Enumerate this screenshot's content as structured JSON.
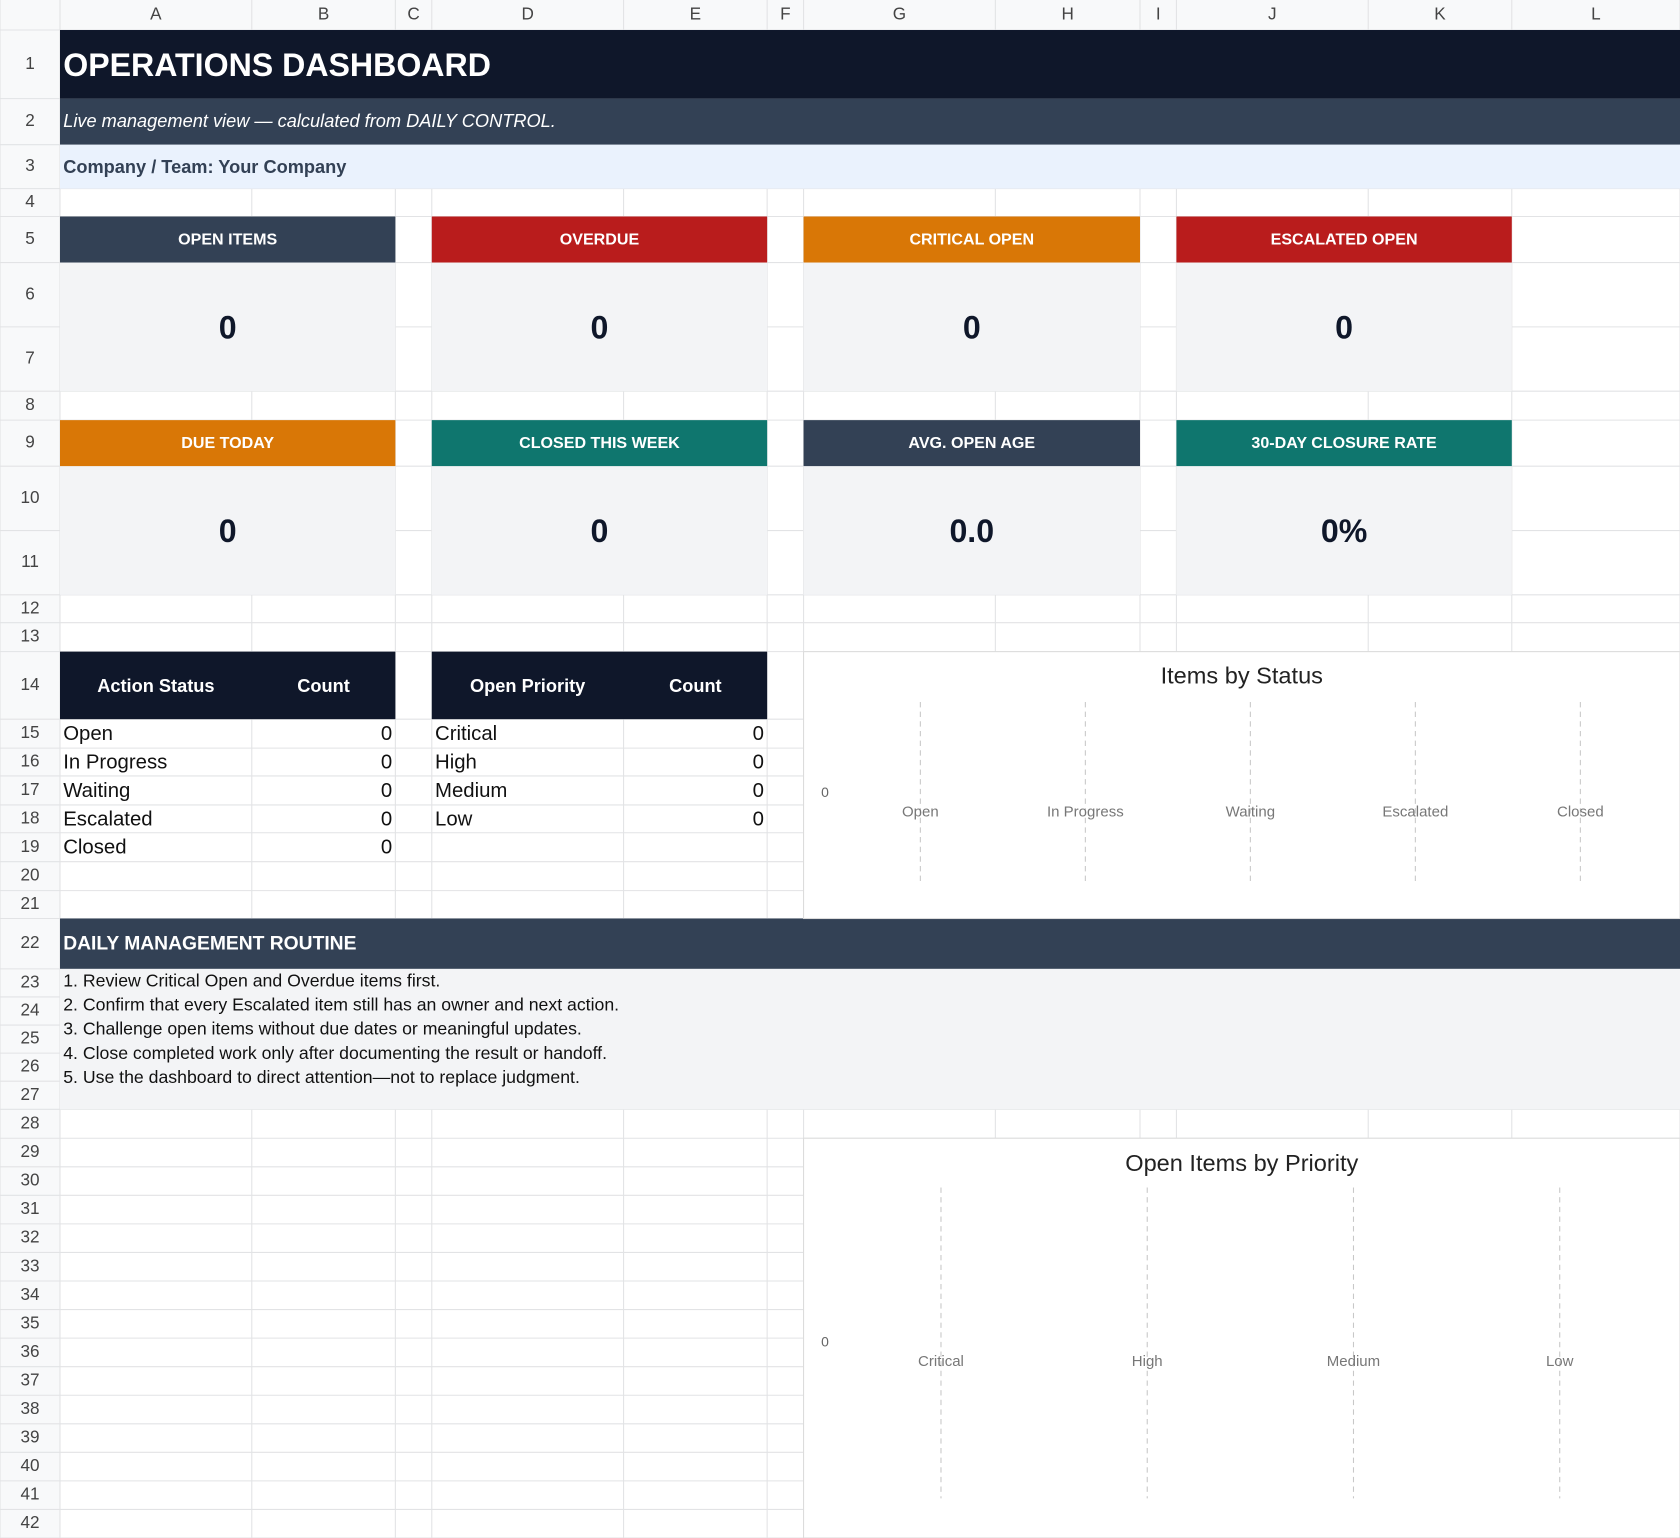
{
  "columns": [
    "A",
    "B",
    "C",
    "D",
    "E",
    "F",
    "G",
    "H",
    "I",
    "J",
    "K",
    "L"
  ],
  "row_numbers": [
    1,
    2,
    3,
    4,
    5,
    6,
    7,
    8,
    9,
    10,
    11,
    12,
    13,
    14,
    15,
    16,
    17,
    18,
    19,
    20,
    21,
    22,
    23,
    24,
    25,
    26,
    27,
    28,
    29,
    30,
    31,
    32,
    33,
    34,
    35,
    36,
    37,
    38,
    39,
    40,
    41,
    42
  ],
  "header": {
    "title": "OPERATIONS DASHBOARD",
    "subtitle": "Live management view — calculated from DAILY CONTROL.",
    "company": "Company / Team: Your Company"
  },
  "kpis": [
    {
      "label": "OPEN ITEMS",
      "value": "0",
      "color": "#334155"
    },
    {
      "label": "OVERDUE",
      "value": "0",
      "color": "#b91c1c"
    },
    {
      "label": "CRITICAL OPEN",
      "value": "0",
      "color": "#d97706"
    },
    {
      "label": "ESCALATED OPEN",
      "value": "0",
      "color": "#b91c1c"
    },
    {
      "label": "DUE TODAY",
      "value": "0",
      "color": "#d97706"
    },
    {
      "label": "CLOSED THIS WEEK",
      "value": "0",
      "color": "#0f766e"
    },
    {
      "label": "AVG. OPEN AGE",
      "value": "0.0",
      "color": "#334155"
    },
    {
      "label": "30-DAY CLOSURE RATE",
      "value": "0%",
      "color": "#0f766e"
    }
  ],
  "status_table": {
    "headers": [
      "Action Status",
      "Count"
    ],
    "rows": [
      [
        "Open",
        0
      ],
      [
        "In Progress",
        0
      ],
      [
        "Waiting",
        0
      ],
      [
        "Escalated",
        0
      ],
      [
        "Closed",
        0
      ]
    ]
  },
  "priority_table": {
    "headers": [
      "Open Priority",
      "Count"
    ],
    "rows": [
      [
        "Critical",
        0
      ],
      [
        "High",
        0
      ],
      [
        "Medium",
        0
      ],
      [
        "Low",
        0
      ]
    ]
  },
  "routine": {
    "title": "DAILY MANAGEMENT ROUTINE",
    "items": [
      "1. Review Critical Open and Overdue items first.",
      "2. Confirm that every Escalated item still has an owner and next action.",
      "3. Challenge open items without due dates or meaningful updates.",
      "4. Close completed work only after documenting the result or handoff.",
      "5. Use the dashboard to direct attention—not to replace judgment."
    ]
  },
  "chart_data": [
    {
      "type": "bar",
      "title": "Items by Status",
      "categories": [
        "Open",
        "In Progress",
        "Waiting",
        "Escalated",
        "Closed"
      ],
      "values": [
        0,
        0,
        0,
        0,
        0
      ],
      "color": "#4472c4",
      "ylim": [
        -1,
        1
      ],
      "yticks": [
        0
      ],
      "grid": true
    },
    {
      "type": "bar",
      "title": "Open Items by Priority",
      "categories": [
        "Critical",
        "High",
        "Medium",
        "Low"
      ],
      "values": [
        0,
        0,
        0,
        0
      ],
      "color": "#4472c4",
      "ylim": [
        -1,
        1
      ],
      "yticks": [
        0
      ],
      "grid": true
    }
  ]
}
